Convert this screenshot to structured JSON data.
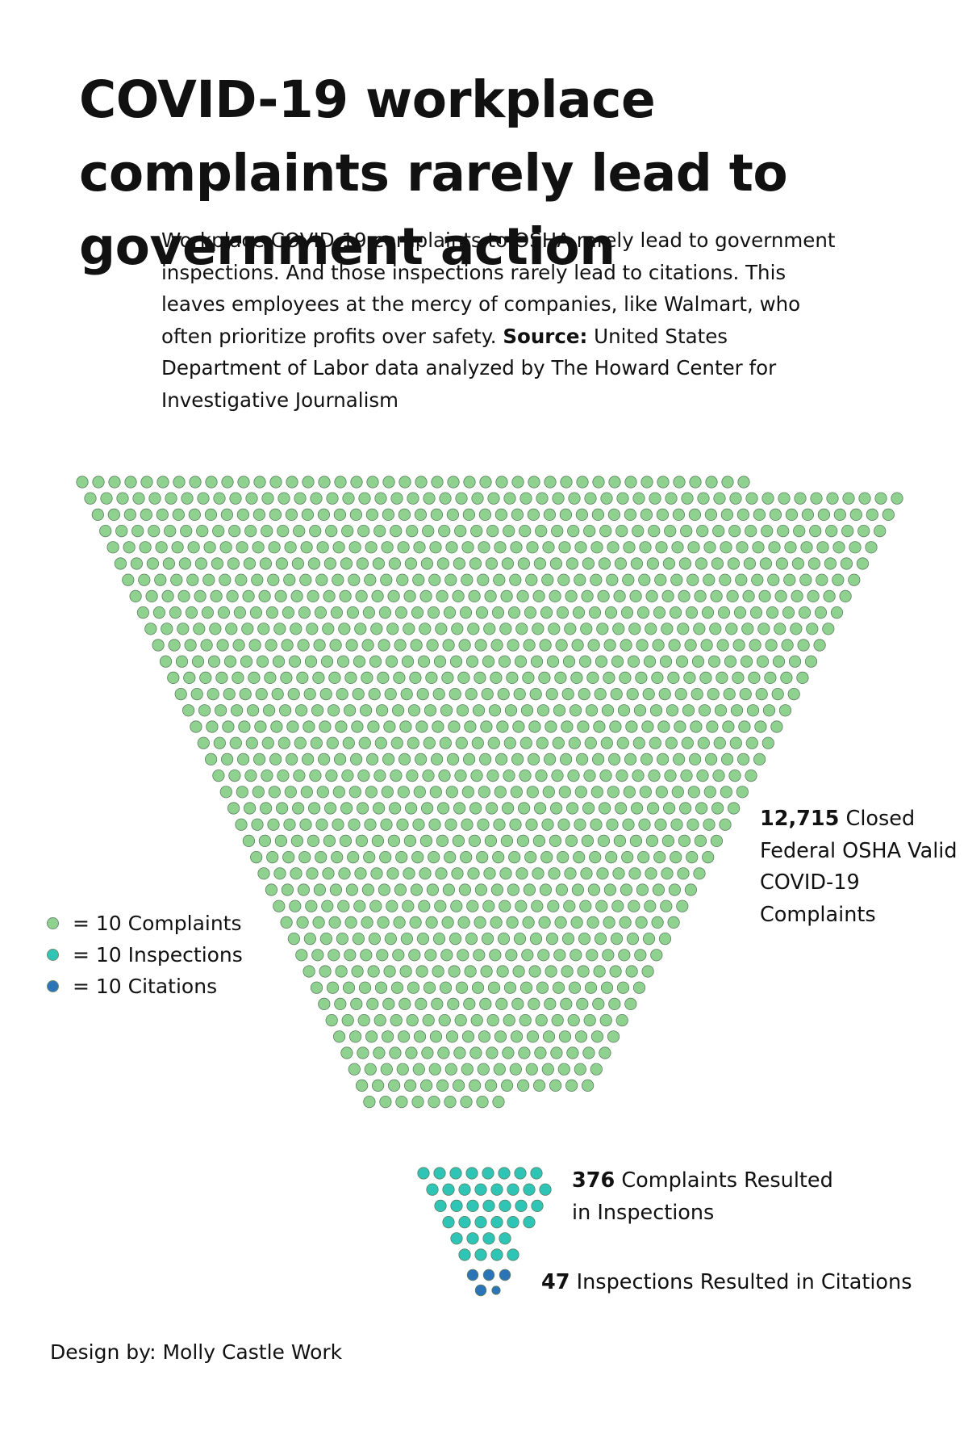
{
  "title": "COVID-19 workplace complaints rarely lead to government action",
  "intro": {
    "text": "Workplace COVID-19 complaints to OSHA rarely lead to government inspections. And those inspections rarely lead to citations. This leaves employees at the mercy of companies, like Walmart, who often prioritize profits over safety.",
    "source_label": "Source:",
    "source_text": "United States Department of Labor data analyzed by The Howard Center for Investigative Journalism"
  },
  "legend": [
    {
      "symbol": "●",
      "label": "= 10 Complaints",
      "color": "#8fd18f"
    },
    {
      "symbol": "●",
      "label": "= 10 Inspections",
      "color": "#2ec4b6"
    },
    {
      "symbol": "●",
      "label": "= 10 Citations",
      "color": "#2b74b8"
    }
  ],
  "labels": {
    "complaints_value": "12,715",
    "complaints_text": "Closed Federal OSHA Valid COVID-19 Complaints",
    "inspections_value": "376",
    "inspections_text": "Complaints Resulted in Inspections",
    "citations_value": "47",
    "citations_text": "Inspections Resulted in Citations"
  },
  "credit": "Design by: Molly Castle Work",
  "chart_data": {
    "type": "waffle-funnel",
    "unit": "10",
    "series": [
      {
        "name": "Complaints",
        "value": 12715,
        "color": "#8fd18f"
      },
      {
        "name": "Inspections",
        "value": 376,
        "color": "#2ec4b6"
      },
      {
        "name": "Citations",
        "value": 47,
        "color": "#2b74b8"
      }
    ]
  }
}
